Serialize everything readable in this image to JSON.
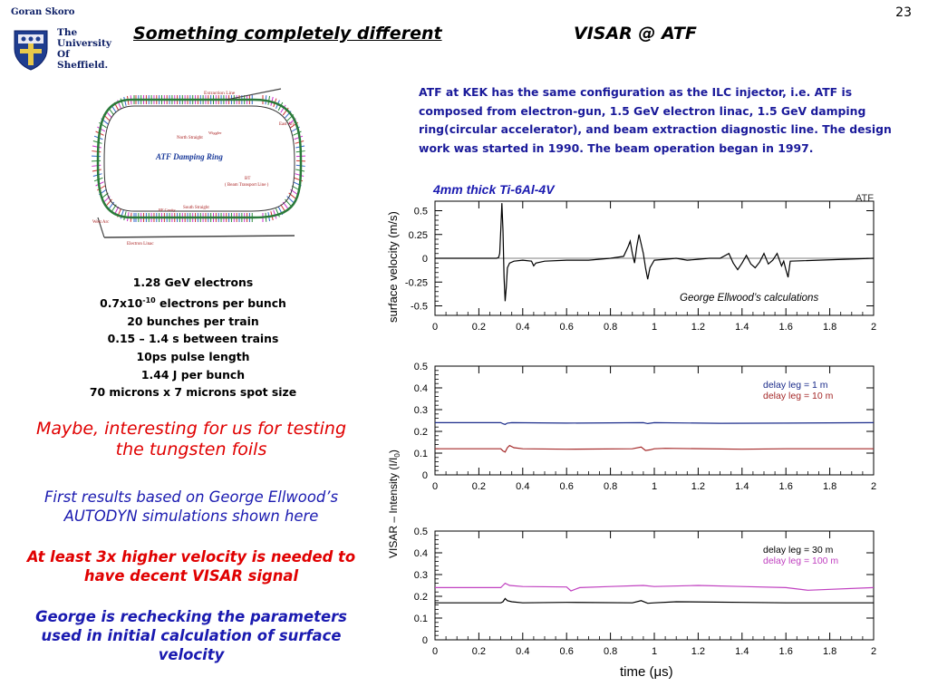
{
  "header": {
    "page_number": "23",
    "author": "Goran Skoro",
    "university": [
      "The",
      "University",
      "Of",
      "Sheffield."
    ],
    "title_left": "Something completely different",
    "title_right": "VISAR @ ATF"
  },
  "atf_description": "ATF at KEK has the same configuration as the ILC injector, i.e. ATF is composed from electron-gun, 1.5 GeV electron linac, 1.5 GeV damping ring(circular accelerator), and beam extraction diagnostic line. The design work was started in 1990. The beam operation began in 1997.",
  "ring_diagram": {
    "title": "ATF     Damping Ring",
    "labels": {
      "extraction_line": "Extraction Line",
      "north_straight": "North Straight",
      "east_arc": "East Arc",
      "west_arc": "West Arc",
      "south_straight": "South Straight",
      "bt": "BT",
      "bt_desc": "( Beam Transport Line )",
      "electron_linac": "Electron Linac",
      "rf_cavity": "RF Cavity",
      "wiggler": "Wiggler"
    }
  },
  "params": {
    "line1": "1.28 GeV electrons",
    "line2_pre": "0.7x10",
    "line2_sup": "-10",
    "line2_post": " electrons per bunch",
    "line3": "20 bunches per train",
    "line4": "0.15 – 1.4 s between trains",
    "line5": "10ps pulse length",
    "line6": "1.44 J per bunch",
    "line7": "70 microns x 7 microns spot size"
  },
  "notes": {
    "maybe": "Maybe, interesting for us for testing the tungsten foils",
    "first": "First results based on George Ellwood’s AUTODYN simulations shown here",
    "factor": "At least 3x higher velocity is needed to have decent VISAR signal",
    "george": "George is rechecking the parameters used in initial calculation of surface velocity"
  },
  "plots": {
    "x_ticks": [
      "0",
      "0.2",
      "0.4",
      "0.6",
      "0.8",
      "1",
      "1.2",
      "1.4",
      "1.6",
      "1.8",
      "2"
    ],
    "xlabel": "time (μs)",
    "top": {
      "title": "4mm thick Ti-6Al-4V",
      "ylabel": "surface velocity (m/s)",
      "y_ticks": [
        "0.5",
        "0.25",
        "0",
        "-0.25",
        "-0.5"
      ],
      "tag": "ATF",
      "annotation": "George Ellwood’s calculations"
    },
    "visar_ylabel": "VISAR – Intensity (I/I",
    "visar_ylabel_sub": "0",
    "visar_ylabel_end": ")",
    "middle": {
      "y_ticks": [
        "0.5",
        "0.4",
        "0.3",
        "0.2",
        "0.1",
        "0"
      ],
      "legend": [
        "delay leg = 1 m",
        "delay leg = 10 m"
      ]
    },
    "bottom": {
      "y_ticks": [
        "0.5",
        "0.4",
        "0.3",
        "0.2",
        "0.1",
        "0"
      ],
      "legend": [
        "delay leg = 30 m",
        "delay leg = 100 m"
      ]
    }
  },
  "chart_data": [
    {
      "type": "line",
      "title": "4mm thick Ti-6Al-4V",
      "ylabel": "surface velocity (m/s)",
      "xlabel": "time (μs)",
      "xlim": [
        0,
        2
      ],
      "ylim": [
        -0.6,
        0.6
      ],
      "series": [
        {
          "color": "#000000",
          "x": [
            0,
            0.28,
            0.29,
            0.295,
            0.3,
            0.305,
            0.31,
            0.315,
            0.32,
            0.325,
            0.33,
            0.34,
            0.36,
            0.4,
            0.44,
            0.45,
            0.46,
            0.5,
            0.6,
            0.7,
            0.8,
            0.86,
            0.88,
            0.89,
            0.9,
            0.91,
            0.92,
            0.93,
            0.94,
            0.95,
            0.96,
            0.97,
            0.98,
            1.0,
            1.05,
            1.1,
            1.15,
            1.2,
            1.25,
            1.3,
            1.34,
            1.36,
            1.38,
            1.4,
            1.42,
            1.44,
            1.46,
            1.48,
            1.5,
            1.52,
            1.54,
            1.56,
            1.58,
            1.59,
            1.6,
            1.61,
            1.62,
            2.0
          ],
          "y": [
            0,
            0,
            0.01,
            0.05,
            0.3,
            0.58,
            0.3,
            -0.2,
            -0.45,
            -0.3,
            -0.1,
            -0.05,
            -0.03,
            -0.02,
            -0.03,
            -0.08,
            -0.05,
            -0.03,
            -0.02,
            -0.02,
            0,
            0.02,
            0.12,
            0.18,
            0.05,
            -0.05,
            0.12,
            0.25,
            0.15,
            0.05,
            -0.1,
            -0.22,
            -0.1,
            -0.02,
            -0.01,
            0,
            -0.02,
            -0.01,
            0,
            0,
            0.05,
            -0.05,
            -0.12,
            -0.05,
            0.03,
            -0.06,
            -0.1,
            -0.04,
            0.05,
            -0.06,
            -0.02,
            0.05,
            -0.08,
            -0.03,
            -0.12,
            -0.2,
            -0.03,
            0
          ]
        }
      ]
    },
    {
      "type": "line",
      "xlabel": "time (μs)",
      "xlim": [
        0,
        2
      ],
      "ylim": [
        0,
        0.5
      ],
      "series": [
        {
          "name": "delay leg = 1 m",
          "color": "#1a2b8a",
          "x": [
            0,
            0.3,
            0.31,
            0.32,
            0.33,
            0.35,
            0.6,
            0.95,
            0.97,
            1.0,
            1.3,
            1.6,
            2.0
          ],
          "y": [
            0.24,
            0.24,
            0.235,
            0.232,
            0.238,
            0.24,
            0.238,
            0.24,
            0.236,
            0.24,
            0.237,
            0.238,
            0.24
          ]
        },
        {
          "name": "delay leg = 10 m",
          "color": "#a52a2a",
          "x": [
            0,
            0.3,
            0.31,
            0.32,
            0.33,
            0.34,
            0.36,
            0.4,
            0.6,
            0.9,
            0.94,
            0.96,
            0.98,
            1.0,
            1.05,
            1.4,
            1.6,
            2.0
          ],
          "y": [
            0.12,
            0.12,
            0.11,
            0.105,
            0.125,
            0.135,
            0.125,
            0.12,
            0.118,
            0.12,
            0.128,
            0.112,
            0.115,
            0.12,
            0.122,
            0.118,
            0.12,
            0.12
          ]
        }
      ]
    },
    {
      "type": "line",
      "xlabel": "time (μs)",
      "xlim": [
        0,
        2
      ],
      "ylim": [
        0,
        0.5
      ],
      "series": [
        {
          "name": "delay leg = 30 m",
          "color": "#000000",
          "x": [
            0,
            0.3,
            0.31,
            0.32,
            0.33,
            0.35,
            0.4,
            0.6,
            0.9,
            0.94,
            0.97,
            1.0,
            1.1,
            1.4,
            1.6,
            2.0
          ],
          "y": [
            0.17,
            0.17,
            0.175,
            0.19,
            0.18,
            0.175,
            0.17,
            0.172,
            0.17,
            0.18,
            0.168,
            0.17,
            0.175,
            0.172,
            0.17,
            0.17
          ],
          "x_note": "approximate"
        },
        {
          "name": "delay leg = 100 m",
          "color": "#c040c0",
          "x": [
            0,
            0.3,
            0.31,
            0.32,
            0.34,
            0.4,
            0.6,
            0.62,
            0.66,
            0.8,
            0.95,
            1.0,
            1.2,
            1.4,
            1.6,
            1.7,
            2.0
          ],
          "y": [
            0.24,
            0.24,
            0.25,
            0.26,
            0.25,
            0.245,
            0.243,
            0.225,
            0.24,
            0.245,
            0.25,
            0.245,
            0.25,
            0.245,
            0.24,
            0.228,
            0.24
          ]
        }
      ]
    }
  ]
}
